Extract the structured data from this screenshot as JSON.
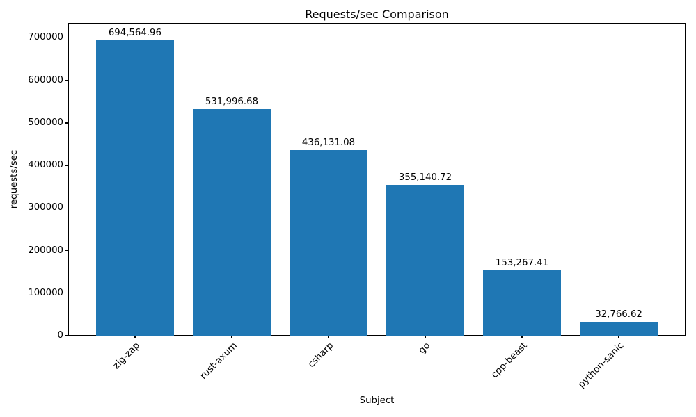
{
  "figure": {
    "background": "#ffffff"
  },
  "chart_data": {
    "type": "bar",
    "title": "Requests/sec Comparison",
    "xlabel": "Subject",
    "ylabel": "requests/sec",
    "categories": [
      "zig-zap",
      "rust-axum",
      "csharp",
      "go",
      "cpp-beast",
      "python-sanic"
    ],
    "values": [
      694564.96,
      531996.68,
      436131.08,
      355140.72,
      153267.41,
      32766.62
    ],
    "bar_labels": [
      "694,564.96",
      "531,996.68",
      "436,131.08",
      "355,140.72",
      "153,267.41",
      "32,766.62"
    ],
    "ylim": [
      0,
      735000
    ],
    "yticks": [
      0,
      100000,
      200000,
      300000,
      400000,
      500000,
      600000,
      700000
    ],
    "xtick_rotation": 45,
    "grid": false,
    "legend_visible": false,
    "bar_color": "#1f77b4",
    "text_color": "#000000",
    "spine_color": "#000000"
  }
}
